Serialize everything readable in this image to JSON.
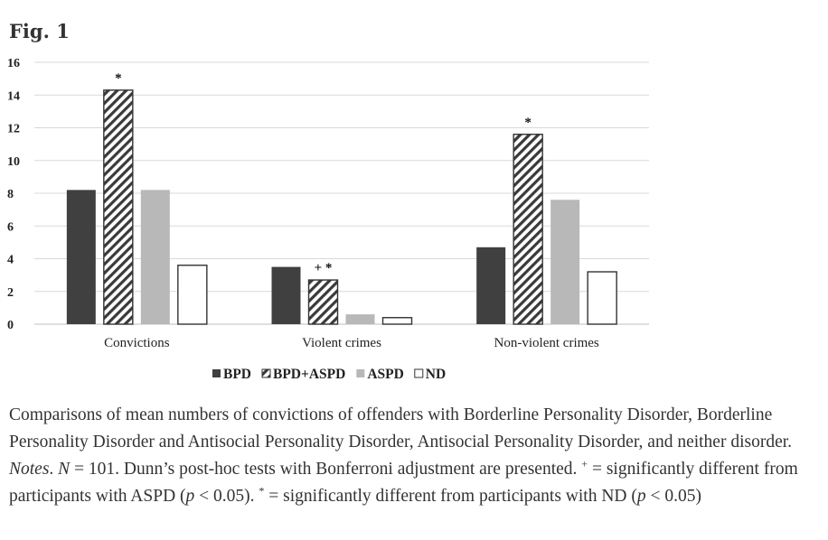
{
  "figure": {
    "label": "Fig. 1"
  },
  "chart_data": {
    "type": "bar",
    "categories": [
      "Convictions",
      "Violent crimes",
      "Non-violent crimes"
    ],
    "series": [
      {
        "name": "BPD",
        "values": [
          8.2,
          3.5,
          4.7
        ],
        "color": "#404040",
        "pattern": "solid"
      },
      {
        "name": "BPD+ASPD",
        "values": [
          14.3,
          2.7,
          11.6
        ],
        "color": "#ffffff",
        "pattern": "diagonal-hatch"
      },
      {
        "name": "ASPD",
        "values": [
          8.2,
          0.6,
          7.6
        ],
        "color": "#b8b8b8",
        "pattern": "solid"
      },
      {
        "name": "ND",
        "values": [
          3.6,
          0.4,
          3.2
        ],
        "color": "#ffffff",
        "pattern": "outline"
      }
    ],
    "ylim": [
      0,
      16
    ],
    "yticks": [
      0,
      2,
      4,
      6,
      8,
      10,
      12,
      14,
      16
    ],
    "grid": true,
    "legend_position": "bottom",
    "annotations": [
      {
        "category": 0,
        "series": 1,
        "text": "*"
      },
      {
        "category": 1,
        "series": 1,
        "text": "+ *"
      },
      {
        "category": 2,
        "series": 1,
        "text": "*"
      }
    ]
  },
  "caption": {
    "text1": "Comparisons of mean numbers of convictions of offenders with Borderline Personality Disorder, Borderline Personality Disorder and Antisocial Personality Disorder, Antisocial Personality Disorder, and neither disorder. ",
    "notes": "Notes",
    "text2": ". ",
    "n_var": "N",
    "text3": " = 101. Dunn’s post-hoc tests with Bonferroni adjustment are presented. ",
    "plus_sym": "+",
    "text4": " = significantly different from participants with ASPD (",
    "p_var1": "p",
    "text5": " < 0.05). ",
    "star_sym": "*",
    "text6": " = significantly different from participants with ND (",
    "p_var2": "p",
    "text7": " < 0.05)"
  }
}
